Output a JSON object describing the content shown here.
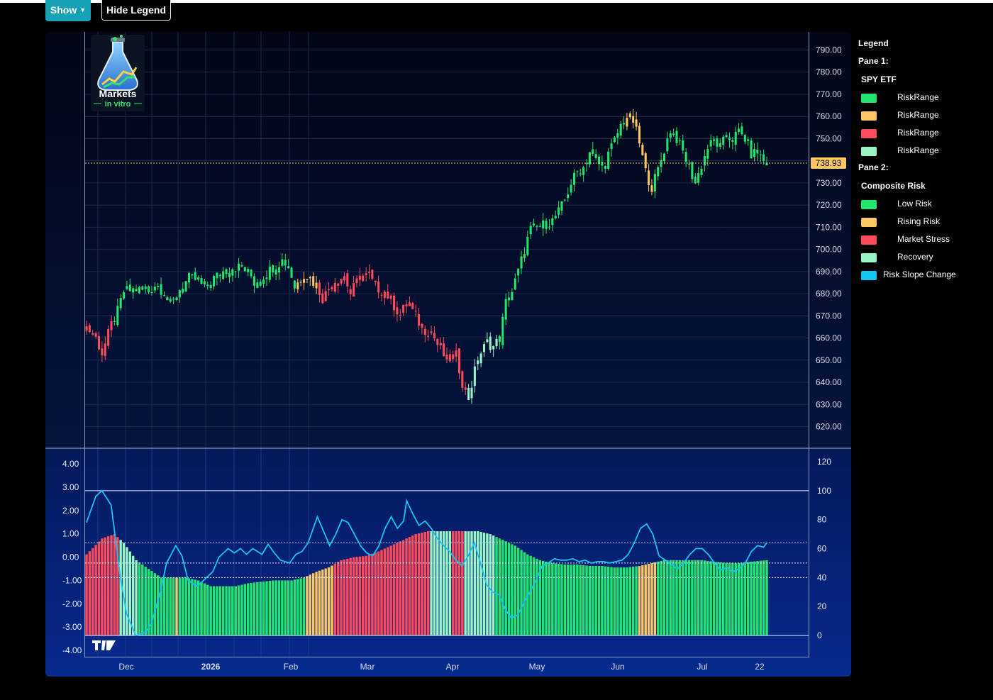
{
  "toolbar": {
    "show_label": "Show",
    "hide_legend_label": "Hide Legend"
  },
  "logo": {
    "text_top": "Markets",
    "text_bottom": "in vitro"
  },
  "legend": {
    "title": "Legend",
    "pane1_label": "Pane 1:",
    "pane1_series": "SPY ETF",
    "pane1_items": [
      {
        "label": "RiskRange",
        "color": "#22e66b"
      },
      {
        "label": "RiskRange",
        "color": "#ffc764"
      },
      {
        "label": "RiskRange",
        "color": "#ff4a5a"
      },
      {
        "label": "RiskRange",
        "color": "#99f5c6"
      }
    ],
    "pane2_label": "Pane 2:",
    "pane2_series": "Composite Risk",
    "pane2_items": [
      {
        "label": "Low Risk",
        "color": "#22e66b"
      },
      {
        "label": "Rising Risk",
        "color": "#ffc764"
      },
      {
        "label": "Market Stress",
        "color": "#ff4a5a"
      },
      {
        "label": "Recovery",
        "color": "#99f5c6"
      },
      {
        "label": "Risk Slope Change",
        "color": "#13c6f2"
      }
    ]
  },
  "chart_data": [
    {
      "type": "candlestick",
      "title": "SPY ETF",
      "last_price_label": "738.93",
      "last_price": 738.93,
      "ylim": [
        612,
        794
      ],
      "y_ticks": [
        "790.00",
        "780.00",
        "770.00",
        "760.00",
        "750.00",
        "740.00",
        "730.00",
        "720.00",
        "710.00",
        "700.00",
        "690.00",
        "680.00",
        "670.00",
        "660.00",
        "650.00",
        "640.00",
        "630.00",
        "620.00"
      ],
      "y_tick_values": [
        790,
        780,
        770,
        760,
        750,
        740,
        730,
        720,
        710,
        700,
        690,
        680,
        670,
        660,
        650,
        640,
        630,
        620
      ],
      "x_ticks": [
        "Dec",
        "2026",
        "Feb",
        "Mar",
        "Apr",
        "May",
        "Jun",
        "Jul",
        "22"
      ],
      "colors": {
        "low_risk": "#22e66b",
        "rising_risk": "#ffc764",
        "market_stress": "#ff4a5a",
        "recovery": "#99f5c6"
      },
      "close_path": [
        [
          0,
          665
        ],
        [
          3,
          660
        ],
        [
          5,
          653
        ],
        [
          8,
          666
        ],
        [
          10,
          672
        ],
        [
          12,
          681
        ],
        [
          16,
          682
        ],
        [
          20,
          681
        ],
        [
          22,
          684
        ],
        [
          25,
          681
        ],
        [
          27,
          674
        ],
        [
          30,
          682
        ],
        [
          33,
          687
        ],
        [
          36,
          686
        ],
        [
          38,
          682
        ],
        [
          41,
          687
        ],
        [
          44,
          690
        ],
        [
          47,
          692
        ],
        [
          50,
          692
        ],
        [
          53,
          688
        ],
        [
          54,
          685
        ],
        [
          57,
          688
        ],
        [
          60,
          692
        ],
        [
          63,
          695
        ],
        [
          65,
          693
        ],
        [
          67,
          683
        ],
        [
          70,
          689
        ],
        [
          74,
          684
        ],
        [
          76,
          678
        ],
        [
          80,
          686
        ],
        [
          83,
          688
        ],
        [
          85,
          680
        ],
        [
          88,
          688
        ],
        [
          91,
          688
        ],
        [
          93,
          683
        ],
        [
          96,
          681
        ],
        [
          98,
          677
        ],
        [
          101,
          670
        ],
        [
          103,
          676
        ],
        [
          106,
          670
        ],
        [
          108,
          664
        ],
        [
          111,
          663
        ],
        [
          113,
          657
        ],
        [
          116,
          650
        ],
        [
          119,
          652
        ],
        [
          121,
          640
        ],
        [
          123,
          633
        ],
        [
          126,
          651
        ],
        [
          129,
          658
        ],
        [
          131,
          656
        ],
        [
          133,
          660
        ],
        [
          135,
          676
        ],
        [
          137,
          681
        ],
        [
          139,
          690
        ],
        [
          141,
          700
        ],
        [
          143,
          709
        ],
        [
          145,
          710
        ],
        [
          147,
          711
        ],
        [
          150,
          713
        ],
        [
          152,
          717
        ],
        [
          154,
          722
        ],
        [
          156,
          730
        ],
        [
          158,
          735
        ],
        [
          160,
          737
        ],
        [
          162,
          744
        ],
        [
          164,
          740
        ],
        [
          166,
          737
        ],
        [
          168,
          743
        ],
        [
          170,
          749
        ],
        [
          172,
          756
        ],
        [
          174,
          760
        ],
        [
          176,
          758
        ],
        [
          178,
          748
        ],
        [
          180,
          735
        ],
        [
          182,
          728
        ],
        [
          184,
          736
        ],
        [
          186,
          745
        ],
        [
          188,
          754
        ],
        [
          190,
          750
        ],
        [
          192,
          744
        ],
        [
          194,
          737
        ],
        [
          196,
          730
        ],
        [
          198,
          738
        ],
        [
          200,
          746
        ],
        [
          202,
          749
        ],
        [
          204,
          746
        ],
        [
          206,
          751
        ],
        [
          208,
          750
        ],
        [
          210,
          753
        ],
        [
          212,
          750
        ],
        [
          214,
          743
        ],
        [
          216,
          744
        ],
        [
          218,
          740
        ],
        [
          219,
          739
        ]
      ],
      "candle_count": 220,
      "color_runs": [
        [
          0,
          8,
          "market_stress"
        ],
        [
          9,
          67,
          "low_risk"
        ],
        [
          68,
          74,
          "rising_risk"
        ],
        [
          75,
          112,
          "market_stress"
        ],
        [
          113,
          122,
          "market_stress"
        ],
        [
          123,
          125,
          "recovery"
        ],
        [
          126,
          132,
          "recovery"
        ],
        [
          133,
          173,
          "low_risk"
        ],
        [
          174,
          182,
          "rising_risk"
        ],
        [
          183,
          219,
          "low_risk"
        ]
      ]
    },
    {
      "type": "bar+line",
      "title": "Composite Risk",
      "y_left_ticks": [
        "4.00",
        "3.00",
        "2.00",
        "1.00",
        "0.00",
        "-1.00",
        "-2.00",
        "-3.00",
        "-4.00"
      ],
      "y_left_values": [
        4,
        3,
        2,
        1,
        0,
        -1,
        -2,
        -3,
        -4
      ],
      "y_right_ticks": [
        "120",
        "100",
        "80",
        "60",
        "40",
        "20",
        "0"
      ],
      "y_right_values": [
        120,
        100,
        80,
        60,
        40,
        20,
        0
      ],
      "ylim_left": [
        -4.2,
        4.2
      ],
      "ylim_right": [
        -2,
        122
      ],
      "ref_lines_right": [
        100,
        64,
        50,
        40,
        0
      ],
      "bar_count": 220,
      "bar_path": [
        [
          0,
          56
        ],
        [
          5,
          67
        ],
        [
          9,
          70
        ],
        [
          12,
          64
        ],
        [
          16,
          52
        ],
        [
          20,
          46
        ],
        [
          24,
          40
        ],
        [
          28,
          40
        ],
        [
          32,
          40
        ],
        [
          36,
          38
        ],
        [
          40,
          34
        ],
        [
          44,
          34
        ],
        [
          48,
          34
        ],
        [
          52,
          36
        ],
        [
          56,
          37
        ],
        [
          60,
          38
        ],
        [
          64,
          38
        ],
        [
          66,
          38
        ],
        [
          70,
          40
        ],
        [
          74,
          44
        ],
        [
          78,
          47
        ],
        [
          82,
          52
        ],
        [
          86,
          54
        ],
        [
          90,
          55
        ],
        [
          94,
          58
        ],
        [
          98,
          62
        ],
        [
          102,
          66
        ],
        [
          106,
          70
        ],
        [
          110,
          72
        ],
        [
          114,
          72
        ],
        [
          118,
          72
        ],
        [
          122,
          72
        ],
        [
          126,
          72
        ],
        [
          130,
          70
        ],
        [
          134,
          66
        ],
        [
          138,
          62
        ],
        [
          142,
          56
        ],
        [
          146,
          52
        ],
        [
          150,
          50
        ],
        [
          154,
          49
        ],
        [
          158,
          49
        ],
        [
          162,
          48
        ],
        [
          166,
          48
        ],
        [
          170,
          47
        ],
        [
          174,
          47
        ],
        [
          178,
          48
        ],
        [
          182,
          50
        ],
        [
          186,
          52
        ],
        [
          190,
          52
        ],
        [
          194,
          52
        ],
        [
          198,
          52
        ],
        [
          202,
          51
        ],
        [
          206,
          50
        ],
        [
          210,
          50
        ],
        [
          214,
          51
        ],
        [
          219,
          52
        ]
      ],
      "bar_color_runs": [
        [
          0,
          10,
          "market_stress"
        ],
        [
          11,
          16,
          "recovery"
        ],
        [
          17,
          28,
          "low_risk"
        ],
        [
          29,
          29,
          "rising_risk"
        ],
        [
          30,
          70,
          "low_risk"
        ],
        [
          71,
          79,
          "rising_risk"
        ],
        [
          80,
          100,
          "market_stress"
        ],
        [
          101,
          110,
          "market_stress"
        ],
        [
          111,
          117,
          "recovery"
        ],
        [
          118,
          121,
          "market_stress"
        ],
        [
          122,
          131,
          "recovery"
        ],
        [
          132,
          177,
          "low_risk"
        ],
        [
          178,
          183,
          "rising_risk"
        ],
        [
          184,
          219,
          "low_risk"
        ]
      ],
      "line_color": "#13c6f2",
      "line_path": [
        [
          0,
          78
        ],
        [
          3,
          96
        ],
        [
          5,
          100
        ],
        [
          8,
          90
        ],
        [
          11,
          40
        ],
        [
          13,
          15
        ],
        [
          16,
          0
        ],
        [
          19,
          2
        ],
        [
          21,
          8
        ],
        [
          24,
          30
        ],
        [
          26,
          50
        ],
        [
          29,
          62
        ],
        [
          31,
          55
        ],
        [
          33,
          38
        ],
        [
          36,
          34
        ],
        [
          38,
          38
        ],
        [
          41,
          44
        ],
        [
          43,
          54
        ],
        [
          46,
          60
        ],
        [
          48,
          57
        ],
        [
          50,
          60
        ],
        [
          52,
          56
        ],
        [
          54,
          60
        ],
        [
          57,
          56
        ],
        [
          59,
          63
        ],
        [
          61,
          57
        ],
        [
          63,
          52
        ],
        [
          66,
          50
        ],
        [
          68,
          56
        ],
        [
          70,
          58
        ],
        [
          72,
          64
        ],
        [
          74,
          76
        ],
        [
          75,
          82
        ],
        [
          77,
          72
        ],
        [
          79,
          62
        ],
        [
          81,
          70
        ],
        [
          83,
          80
        ],
        [
          85,
          78
        ],
        [
          87,
          70
        ],
        [
          89,
          62
        ],
        [
          91,
          57
        ],
        [
          93,
          55
        ],
        [
          95,
          62
        ],
        [
          97,
          74
        ],
        [
          99,
          82
        ],
        [
          101,
          74
        ],
        [
          103,
          79
        ],
        [
          104,
          93
        ],
        [
          106,
          84
        ],
        [
          108,
          76
        ],
        [
          110,
          79
        ],
        [
          112,
          74
        ],
        [
          114,
          67
        ],
        [
          116,
          62
        ],
        [
          118,
          58
        ],
        [
          120,
          52
        ],
        [
          122,
          48
        ],
        [
          124,
          55
        ],
        [
          126,
          64
        ],
        [
          128,
          50
        ],
        [
          130,
          35
        ],
        [
          132,
          30
        ],
        [
          134,
          28
        ],
        [
          136,
          18
        ],
        [
          138,
          12
        ],
        [
          140,
          14
        ],
        [
          142,
          22
        ],
        [
          144,
          30
        ],
        [
          146,
          38
        ],
        [
          148,
          48
        ],
        [
          150,
          50
        ],
        [
          152,
          53
        ],
        [
          154,
          52
        ],
        [
          156,
          52
        ],
        [
          158,
          53
        ],
        [
          160,
          51
        ],
        [
          162,
          52
        ],
        [
          164,
          50
        ],
        [
          166,
          51
        ],
        [
          168,
          51
        ],
        [
          170,
          50
        ],
        [
          172,
          51
        ],
        [
          174,
          52
        ],
        [
          176,
          56
        ],
        [
          178,
          64
        ],
        [
          180,
          74
        ],
        [
          182,
          77
        ],
        [
          184,
          70
        ],
        [
          186,
          55
        ],
        [
          188,
          52
        ],
        [
          190,
          49
        ],
        [
          192,
          46
        ],
        [
          194,
          50
        ],
        [
          196,
          56
        ],
        [
          198,
          60
        ],
        [
          200,
          60
        ],
        [
          202,
          56
        ],
        [
          204,
          50
        ],
        [
          206,
          45
        ],
        [
          208,
          47
        ],
        [
          210,
          44
        ],
        [
          212,
          46
        ],
        [
          214,
          50
        ],
        [
          216,
          58
        ],
        [
          218,
          62
        ],
        [
          220,
          61
        ],
        [
          221,
          64
        ]
      ]
    }
  ]
}
